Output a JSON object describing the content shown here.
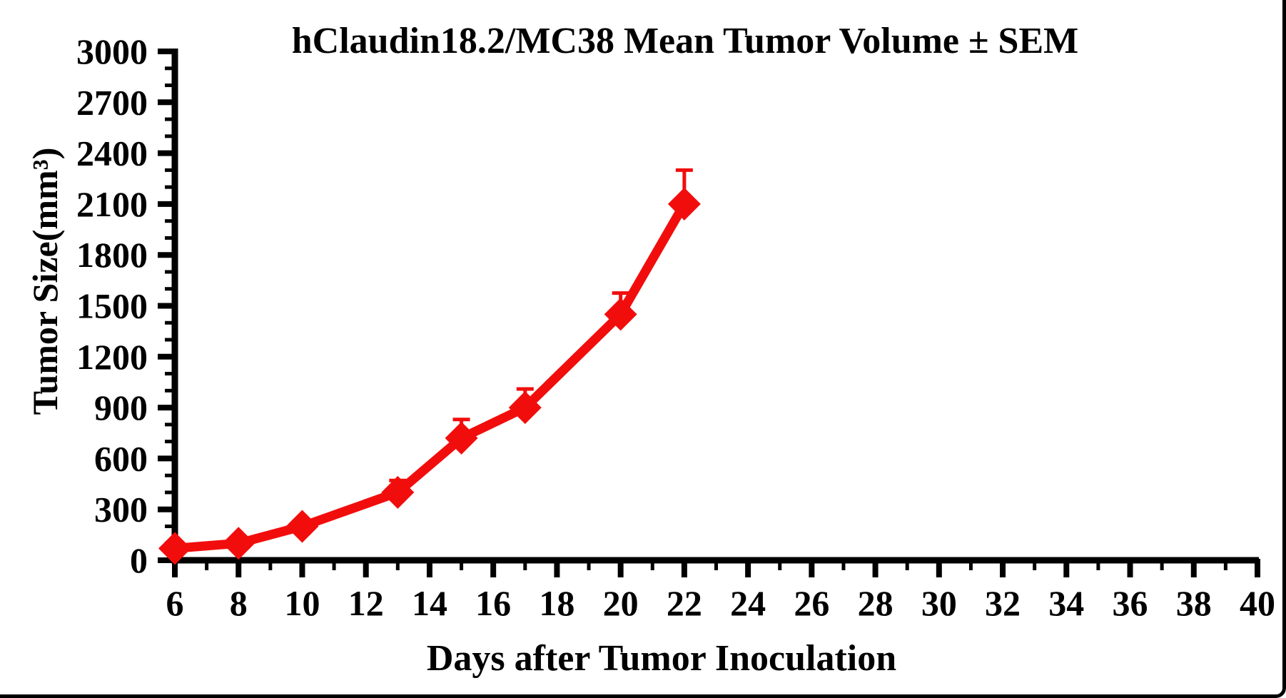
{
  "frame": {
    "background": "#ffffff",
    "border_color": "#000000"
  },
  "chart_data": {
    "type": "line",
    "title": "hClaudin18.2/MC38 Mean Tumor Volume ± SEM",
    "xlabel": "Days after Tumor Inoculation",
    "ylabel": "Tumor Size(mm³)",
    "x": [
      6,
      8,
      10,
      13,
      15,
      17,
      20,
      22
    ],
    "series": [
      {
        "name": "hClaudin18.2/MC38 mean tumor volume",
        "values": [
          70,
          100,
          200,
          400,
          720,
          900,
          1450,
          2100
        ],
        "sem_upper": [
          0,
          0,
          0,
          70,
          110,
          110,
          125,
          200
        ],
        "color": "#f20d0d",
        "marker": "diamond",
        "line_width": 13
      }
    ],
    "xlim": [
      6,
      40
    ],
    "ylim": [
      0,
      3000
    ],
    "grid": false,
    "legend": "none",
    "axis_color": "#000000",
    "x_axis": {
      "major_tick_values": [
        6,
        8,
        10,
        12,
        14,
        16,
        18,
        20,
        22,
        24,
        26,
        28,
        30,
        32,
        34,
        36,
        38,
        40
      ],
      "major_tick_labels": [
        "6",
        "8",
        "10",
        "12",
        "14",
        "16",
        "18",
        "20",
        "22",
        "24",
        "26",
        "28",
        "30",
        "32",
        "34",
        "36",
        "38",
        "40"
      ],
      "minor_step": 1
    },
    "y_axis": {
      "major_tick_values": [
        0,
        300,
        600,
        900,
        1200,
        1500,
        1800,
        2100,
        2400,
        2700,
        3000
      ],
      "major_tick_labels": [
        "0",
        "300",
        "600",
        "900",
        "1200",
        "1500",
        "1800",
        "2100",
        "2400",
        "2700",
        "3000"
      ],
      "minor_step": 100
    }
  }
}
